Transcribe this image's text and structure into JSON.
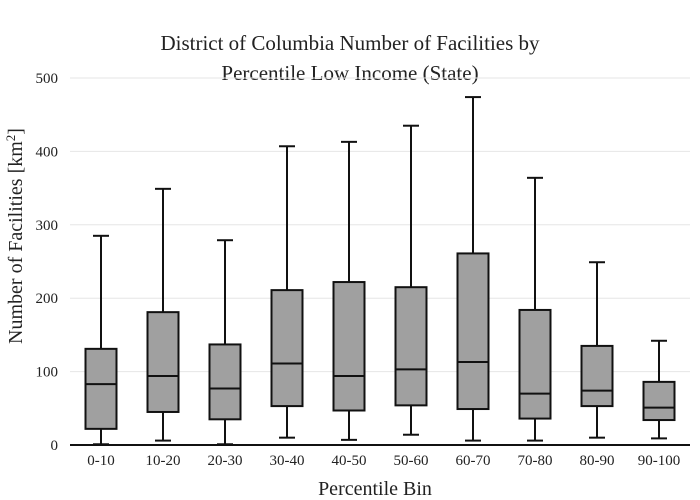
{
  "chart_data": {
    "type": "box",
    "title_line1": "District of Columbia Number of Facilities by",
    "title_line2": "Percentile Low Income (State)",
    "xlabel": "Percentile Bin",
    "ylabel_main": "Number of Facilities  [km",
    "ylabel_sup": "2",
    "ylabel_end": "]",
    "ylim": [
      0,
      500
    ],
    "yticks": [
      0,
      100,
      200,
      300,
      400,
      500
    ],
    "grid": true,
    "box_color": "#a0a0a0",
    "categories": [
      "0-10",
      "10-20",
      "20-30",
      "30-40",
      "40-50",
      "50-60",
      "60-70",
      "70-80",
      "80-90",
      "90-100"
    ],
    "boxes": [
      {
        "min": 1,
        "q1": 22,
        "median": 83,
        "q3": 131,
        "max": 285
      },
      {
        "min": 6,
        "q1": 45,
        "median": 94,
        "q3": 181,
        "max": 349
      },
      {
        "min": 1,
        "q1": 35,
        "median": 77,
        "q3": 137,
        "max": 279
      },
      {
        "min": 10,
        "q1": 53,
        "median": 111,
        "q3": 211,
        "max": 407
      },
      {
        "min": 7,
        "q1": 47,
        "median": 94,
        "q3": 222,
        "max": 413
      },
      {
        "min": 14,
        "q1": 54,
        "median": 103,
        "q3": 215,
        "max": 435
      },
      {
        "min": 6,
        "q1": 49,
        "median": 113,
        "q3": 261,
        "max": 474
      },
      {
        "min": 6,
        "q1": 36,
        "median": 70,
        "q3": 184,
        "max": 364
      },
      {
        "min": 10,
        "q1": 53,
        "median": 74,
        "q3": 135,
        "max": 249
      },
      {
        "min": 9,
        "q1": 34,
        "median": 51,
        "q3": 86,
        "max": 142
      }
    ]
  }
}
